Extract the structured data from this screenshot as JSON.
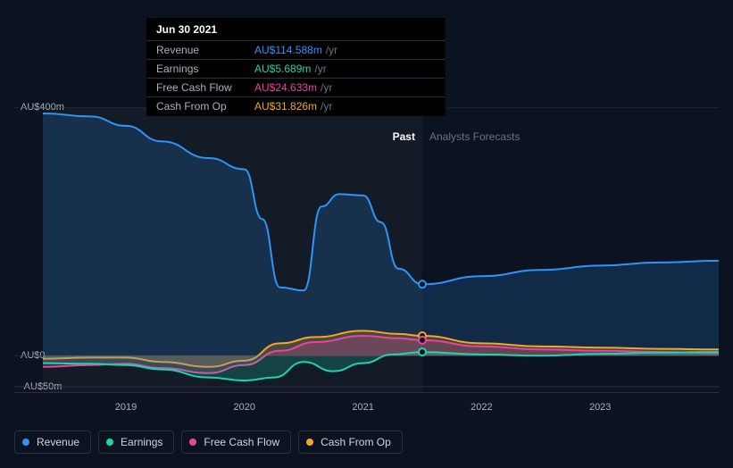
{
  "tooltip": {
    "date": "Jun 30 2021",
    "rows": [
      {
        "label": "Revenue",
        "value": "AU$114.588m",
        "unit": "/yr",
        "color": "#2e93fa"
      },
      {
        "label": "Earnings",
        "value": "AU$5.689m",
        "unit": "/yr",
        "color": "#1fd3b1"
      },
      {
        "label": "Free Cash Flow",
        "value": "AU$24.633m",
        "unit": "/yr",
        "color": "#e8459e"
      },
      {
        "label": "Cash From Op",
        "value": "AU$31.826m",
        "unit": "/yr",
        "color": "#f5a623"
      }
    ]
  },
  "chart": {
    "type": "area",
    "background": "#0b1320",
    "grid_color": "#2b313c",
    "y_axis": {
      "min": -60,
      "max": 400,
      "ticks": [
        {
          "value": 400,
          "label": "AU$400m"
        },
        {
          "value": 0,
          "label": "AU$0"
        },
        {
          "value": -50,
          "label": "-AU$50m"
        }
      ]
    },
    "x_axis": {
      "min": 2018.3,
      "max": 2024.0,
      "ticks": [
        {
          "value": 2019,
          "label": "2019"
        },
        {
          "value": 2020,
          "label": "2020"
        },
        {
          "value": 2021,
          "label": "2021"
        },
        {
          "value": 2022,
          "label": "2022"
        },
        {
          "value": 2023,
          "label": "2023"
        }
      ]
    },
    "zones": {
      "split_x": 2021.5,
      "past_label": "Past",
      "past_color": "#ffffff",
      "forecast_label": "Analysts Forecasts",
      "forecast_color": "#6b7280",
      "past_bg": "rgba(255,255,255,0.035)"
    },
    "cursor_x": 2021.5,
    "series": [
      {
        "key": "revenue",
        "label": "Revenue",
        "color": "#2e93fa",
        "points": [
          [
            2018.3,
            390
          ],
          [
            2018.7,
            385
          ],
          [
            2019.0,
            370
          ],
          [
            2019.3,
            345
          ],
          [
            2019.7,
            318
          ],
          [
            2020.0,
            300
          ],
          [
            2020.15,
            220
          ],
          [
            2020.3,
            110
          ],
          [
            2020.5,
            105
          ],
          [
            2020.65,
            240
          ],
          [
            2020.8,
            260
          ],
          [
            2021.0,
            258
          ],
          [
            2021.15,
            215
          ],
          [
            2021.3,
            140
          ],
          [
            2021.5,
            115
          ],
          [
            2022.0,
            128
          ],
          [
            2022.5,
            138
          ],
          [
            2023.0,
            145
          ],
          [
            2023.5,
            150
          ],
          [
            2024.0,
            153
          ]
        ]
      },
      {
        "key": "cash_from_op",
        "label": "Cash From Op",
        "color": "#f5a623",
        "points": [
          [
            2018.3,
            -5
          ],
          [
            2018.7,
            -3
          ],
          [
            2019.0,
            -3
          ],
          [
            2019.3,
            -10
          ],
          [
            2019.7,
            -18
          ],
          [
            2020.0,
            -8
          ],
          [
            2020.3,
            20
          ],
          [
            2020.6,
            30
          ],
          [
            2021.0,
            40
          ],
          [
            2021.3,
            35
          ],
          [
            2021.5,
            32
          ],
          [
            2022.0,
            20
          ],
          [
            2022.5,
            15
          ],
          [
            2023.0,
            13
          ],
          [
            2023.5,
            11
          ],
          [
            2024.0,
            10
          ]
        ]
      },
      {
        "key": "free_cash_flow",
        "label": "Free Cash Flow",
        "color": "#e8459e",
        "points": [
          [
            2018.3,
            -18
          ],
          [
            2018.7,
            -15
          ],
          [
            2019.0,
            -13
          ],
          [
            2019.3,
            -20
          ],
          [
            2019.7,
            -28
          ],
          [
            2020.0,
            -15
          ],
          [
            2020.3,
            8
          ],
          [
            2020.6,
            22
          ],
          [
            2021.0,
            32
          ],
          [
            2021.3,
            28
          ],
          [
            2021.5,
            25
          ],
          [
            2022.0,
            15
          ],
          [
            2022.5,
            10
          ],
          [
            2023.0,
            8
          ],
          [
            2023.5,
            6
          ],
          [
            2024.0,
            4
          ]
        ]
      },
      {
        "key": "earnings",
        "label": "Earnings",
        "color": "#1fd3b1",
        "points": [
          [
            2018.3,
            -12
          ],
          [
            2018.7,
            -13
          ],
          [
            2019.0,
            -15
          ],
          [
            2019.3,
            -22
          ],
          [
            2019.7,
            -35
          ],
          [
            2020.0,
            -40
          ],
          [
            2020.25,
            -35
          ],
          [
            2020.5,
            -10
          ],
          [
            2020.75,
            -25
          ],
          [
            2021.0,
            -12
          ],
          [
            2021.25,
            2
          ],
          [
            2021.5,
            6
          ],
          [
            2022.0,
            2
          ],
          [
            2022.5,
            0
          ],
          [
            2023.0,
            3
          ],
          [
            2023.5,
            5
          ],
          [
            2024.0,
            6
          ]
        ]
      }
    ],
    "markers_at_cursor": [
      {
        "series": "revenue",
        "value": 115,
        "color": "#2e93fa"
      },
      {
        "series": "cash_from_op",
        "value": 32,
        "color": "#f5a623"
      },
      {
        "series": "free_cash_flow",
        "value": 25,
        "color": "#e8459e"
      },
      {
        "series": "earnings",
        "value": 6,
        "color": "#1fd3b1"
      }
    ],
    "legend_order": [
      "revenue",
      "earnings",
      "free_cash_flow",
      "cash_from_op"
    ]
  }
}
